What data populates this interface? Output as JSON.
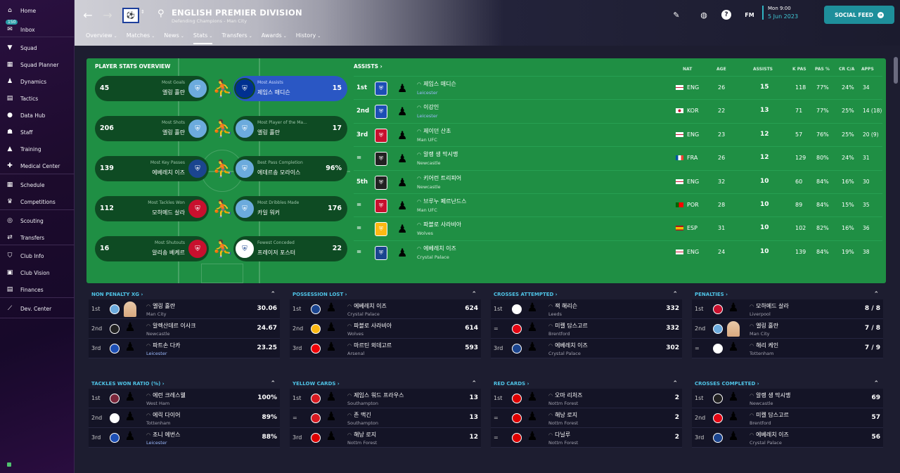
{
  "sidebar": {
    "items": [
      {
        "label": "Home",
        "icon": "home-icon",
        "glyph": "⌂"
      },
      {
        "label": "Inbox",
        "icon": "inbox-icon",
        "glyph": "✉",
        "badge": "150"
      },
      {
        "label": "Squad",
        "icon": "shirt-icon",
        "glyph": "▼"
      },
      {
        "label": "Squad Planner",
        "icon": "squad-planner-icon",
        "glyph": "▦"
      },
      {
        "label": "Dynamics",
        "icon": "dynamics-icon",
        "glyph": "♟"
      },
      {
        "label": "Tactics",
        "icon": "tactics-icon",
        "glyph": "▤"
      },
      {
        "label": "Data Hub",
        "icon": "data-hub-icon",
        "glyph": "●"
      },
      {
        "label": "Staff",
        "icon": "staff-icon",
        "glyph": "☗"
      },
      {
        "label": "Training",
        "icon": "training-icon",
        "glyph": "▲"
      },
      {
        "label": "Medical Center",
        "icon": "medical-icon",
        "glyph": "✚"
      },
      {
        "label": "Schedule",
        "icon": "calendar-icon",
        "glyph": "▦"
      },
      {
        "label": "Competitions",
        "icon": "trophy-icon",
        "glyph": "♛"
      },
      {
        "label": "Scouting",
        "icon": "scouting-icon",
        "glyph": "◎"
      },
      {
        "label": "Transfers",
        "icon": "transfers-icon",
        "glyph": "⇄"
      },
      {
        "label": "Club Info",
        "icon": "club-info-icon",
        "glyph": "⛉"
      },
      {
        "label": "Club Vision",
        "icon": "club-vision-icon",
        "glyph": "▣"
      },
      {
        "label": "Finances",
        "icon": "finances-icon",
        "glyph": "▤"
      },
      {
        "label": "Dev. Center",
        "icon": "dev-center-icon",
        "glyph": "⟋"
      }
    ]
  },
  "header": {
    "title": "ENGLISH PREMIER DIVISION",
    "subtitle": "Defending Champions - Man City",
    "tabs": [
      {
        "label": "Overview",
        "active": false
      },
      {
        "label": "Matches",
        "active": false
      },
      {
        "label": "News",
        "active": false
      },
      {
        "label": "Stats",
        "active": true
      },
      {
        "label": "Transfers",
        "active": false
      },
      {
        "label": "Awards",
        "active": false
      },
      {
        "label": "History",
        "active": false
      }
    ],
    "date_day": "Mon 9:00",
    "date": "5 Jun 2023",
    "fm_label": "FM",
    "social_feed": "SOCIAL FEED"
  },
  "player_stats_overview": {
    "title": "PLAYER STATS OVERVIEW",
    "left": [
      {
        "label": "Most Goals",
        "name": "엘링 홀란",
        "value": "45",
        "crest": "#6cabdd"
      },
      {
        "label": "Most Shots",
        "name": "엘링 홀란",
        "value": "206",
        "crest": "#6cabdd"
      },
      {
        "label": "Most Key Passes",
        "name": "에베레치 이즈",
        "value": "139",
        "crest": "#1b458f"
      },
      {
        "label": "Most Tackles Won",
        "name": "모하메드 살라",
        "value": "112",
        "crest": "#c8102e"
      },
      {
        "label": "Most Shutouts",
        "name": "알리송 베케르",
        "value": "16",
        "crest": "#c8102e"
      }
    ],
    "right": [
      {
        "label": "Most Assists",
        "name": "제임스 매디슨",
        "value": "15",
        "crest": "#003090",
        "highlight": true
      },
      {
        "label": "Most Player of the Ma...",
        "name": "엘링 홀란",
        "value": "17",
        "crest": "#6cabdd"
      },
      {
        "label": "Best Pass Completion",
        "name": "에데르송 모라이스",
        "value": "96%",
        "crest": "#6cabdd"
      },
      {
        "label": "Most Dribbles Made",
        "name": "카일 워커",
        "value": "176",
        "crest": "#6cabdd"
      },
      {
        "label": "Fewest Conceded",
        "name": "프레이저 포스터",
        "value": "22",
        "crest": "#ffffff"
      }
    ]
  },
  "assists": {
    "title": "ASSISTS",
    "columns": [
      "NAT",
      "AGE",
      "ASSISTS",
      "K PAS",
      "PAS %",
      "CR C/A",
      "APPS"
    ],
    "rows": [
      {
        "pos": "1st",
        "name": "제임스 매디슨",
        "club": "Leicester",
        "club_blue": true,
        "nat": "ENG",
        "flag": "eng",
        "age": "26",
        "assists": "15",
        "kpas": "118",
        "pas": "77%",
        "cr": "24%",
        "apps": "34",
        "crest": "#1d4fb5"
      },
      {
        "pos": "2nd",
        "name": "이강인",
        "club": "Leicester",
        "club_blue": true,
        "nat": "KOR",
        "flag": "kor",
        "age": "22",
        "assists": "13",
        "kpas": "71",
        "pas": "77%",
        "cr": "25%",
        "apps": "14 (18)",
        "crest": "#1d4fb5"
      },
      {
        "pos": "3rd",
        "name": "제이던 산초",
        "club": "Man UFC",
        "club_blue": false,
        "nat": "ENG",
        "flag": "eng",
        "age": "23",
        "assists": "12",
        "kpas": "57",
        "pas": "76%",
        "cr": "25%",
        "apps": "20 (9)",
        "crest": "#c8102e"
      },
      {
        "pos": "=",
        "name": "알랭 생 막시맹",
        "club": "Newcastle",
        "club_blue": false,
        "nat": "FRA",
        "flag": "fra",
        "age": "26",
        "assists": "12",
        "kpas": "129",
        "pas": "80%",
        "cr": "24%",
        "apps": "31",
        "crest": "#222222"
      },
      {
        "pos": "5th",
        "name": "키어런 트리피어",
        "club": "Newcastle",
        "club_blue": false,
        "nat": "ENG",
        "flag": "eng",
        "age": "32",
        "assists": "10",
        "kpas": "60",
        "pas": "84%",
        "cr": "16%",
        "apps": "30",
        "crest": "#222222"
      },
      {
        "pos": "=",
        "name": "브루누 페르난드스",
        "club": "Man UFC",
        "club_blue": false,
        "nat": "POR",
        "flag": "por",
        "age": "28",
        "assists": "10",
        "kpas": "89",
        "pas": "84%",
        "cr": "15%",
        "apps": "35",
        "crest": "#c8102e"
      },
      {
        "pos": "=",
        "name": "파블로 사라비아",
        "club": "Wolves",
        "club_blue": false,
        "nat": "ESP",
        "flag": "esp",
        "age": "31",
        "assists": "10",
        "kpas": "102",
        "pas": "82%",
        "cr": "16%",
        "apps": "36",
        "crest": "#fdb913"
      },
      {
        "pos": "=",
        "name": "에베레치 이즈",
        "club": "Crystal Palace",
        "club_blue": false,
        "nat": "ENG",
        "flag": "eng",
        "age": "24",
        "assists": "10",
        "kpas": "139",
        "pas": "84%",
        "cr": "19%",
        "apps": "38",
        "crest": "#1b458f"
      }
    ]
  },
  "widgets": [
    {
      "title": "NON PENALTY XG",
      "rows": [
        {
          "pos": "1st",
          "name": "엘링 홀란",
          "club": "Man City",
          "value": "30.06",
          "photo": true,
          "crest": "#6cabdd"
        },
        {
          "pos": "2nd",
          "name": "알렉산데르 이사크",
          "club": "Newcastle",
          "value": "24.67",
          "crest": "#222222"
        },
        {
          "pos": "3rd",
          "name": "파트손 다카",
          "club": "Leicester",
          "club_blue": true,
          "value": "23.25",
          "crest": "#1d4fb5"
        }
      ]
    },
    {
      "title": "POSSESSION LOST",
      "rows": [
        {
          "pos": "1st",
          "name": "에베레치 이즈",
          "club": "Crystal Palace",
          "value": "624",
          "crest": "#1b458f"
        },
        {
          "pos": "2nd",
          "name": "파블로 사라비아",
          "club": "Wolves",
          "value": "614",
          "crest": "#fdb913"
        },
        {
          "pos": "3rd",
          "name": "마르틴 외데고르",
          "club": "Arsenal",
          "value": "593",
          "crest": "#ef0107"
        }
      ]
    },
    {
      "title": "CROSSES ATTEMPTED",
      "rows": [
        {
          "pos": "1st",
          "name": "잭 해리슨",
          "club": "Leeds",
          "value": "332",
          "crest": "#ffffff"
        },
        {
          "pos": "=",
          "name": "미켈 담스고르",
          "club": "Brentford",
          "value": "332",
          "crest": "#e30613"
        },
        {
          "pos": "3rd",
          "name": "에베레치 이즈",
          "club": "Crystal Palace",
          "value": "302",
          "crest": "#1b458f"
        }
      ]
    },
    {
      "title": "PENALTIES",
      "rows": [
        {
          "pos": "1st",
          "name": "모하메드 살라",
          "club": "Liverpool",
          "value": "8 / 8",
          "crest": "#c8102e"
        },
        {
          "pos": "2nd",
          "name": "엘링 홀란",
          "club": "Man City",
          "value": "7 / 8",
          "photo": true,
          "crest": "#6cabdd"
        },
        {
          "pos": "=",
          "name": "해리 케인",
          "club": "Tottenham",
          "value": "7 / 9",
          "crest": "#ffffff"
        }
      ]
    },
    {
      "title": "TACKLES WON RATIO (%)",
      "rows": [
        {
          "pos": "1st",
          "name": "에런 크레스웰",
          "club": "West Ham",
          "value": "100%",
          "crest": "#7a263a"
        },
        {
          "pos": "2nd",
          "name": "에릭 다이어",
          "club": "Tottenham",
          "value": "89%",
          "crest": "#ffffff"
        },
        {
          "pos": "3rd",
          "name": "조니 에번스",
          "club": "Leicester",
          "club_blue": true,
          "value": "88%",
          "crest": "#1d4fb5"
        }
      ]
    },
    {
      "title": "YELLOW CARDS",
      "rows": [
        {
          "pos": "1st",
          "name": "제임스 워드 프라우스",
          "club": "Southampton",
          "value": "13",
          "crest": "#d71920"
        },
        {
          "pos": "=",
          "name": "존 맥긴",
          "club": "Southampton",
          "value": "13",
          "crest": "#d71920"
        },
        {
          "pos": "3rd",
          "name": "해낭 로지",
          "club": "Nottm Forest",
          "value": "12",
          "crest": "#dd0000"
        }
      ]
    },
    {
      "title": "RED CARDS",
      "rows": [
        {
          "pos": "1st",
          "name": "오마 리처즈",
          "club": "Nottm Forest",
          "value": "2",
          "crest": "#dd0000"
        },
        {
          "pos": "=",
          "name": "해낭 로지",
          "club": "Nottm Forest",
          "value": "2",
          "crest": "#dd0000"
        },
        {
          "pos": "=",
          "name": "다닐루",
          "club": "Nottm Forest",
          "value": "2",
          "crest": "#dd0000"
        }
      ]
    },
    {
      "title": "CROSSES COMPLETED",
      "rows": [
        {
          "pos": "1st",
          "name": "알랭 생 막시맹",
          "club": "Newcastle",
          "value": "69",
          "crest": "#222222"
        },
        {
          "pos": "2nd",
          "name": "미켈 담스고르",
          "club": "Brentford",
          "value": "57",
          "crest": "#e30613"
        },
        {
          "pos": "3rd",
          "name": "에베레치 이즈",
          "club": "Crystal Palace",
          "value": "56",
          "crest": "#1b458f"
        }
      ]
    }
  ]
}
